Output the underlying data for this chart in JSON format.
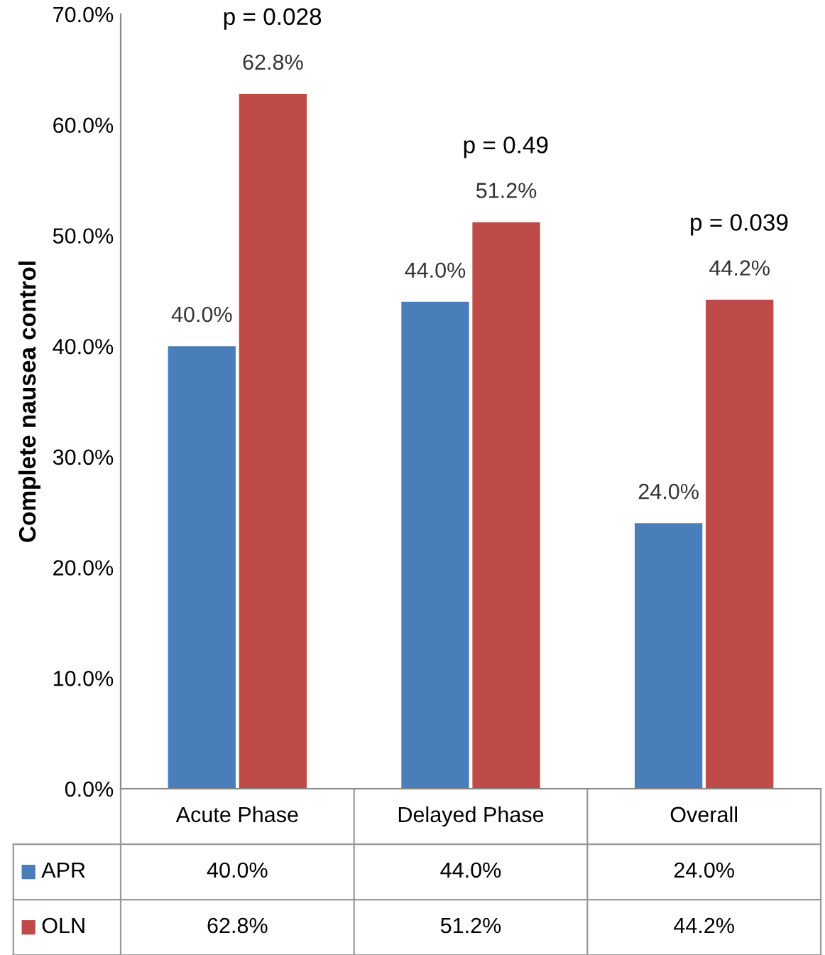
{
  "chart_data": {
    "type": "bar",
    "ylabel": "Complete nausea control",
    "categories": [
      "Acute Phase",
      "Delayed Phase",
      "Overall"
    ],
    "series": [
      {
        "name": "APR",
        "color": "#4a7ebb",
        "values": [
          40.0,
          44.0,
          24.0
        ],
        "value_labels": [
          "40.0%",
          "44.0%",
          "24.0%"
        ]
      },
      {
        "name": "OLN",
        "color": "#be4b48",
        "values": [
          62.8,
          51.2,
          44.2
        ],
        "value_labels": [
          "62.8%",
          "51.2%",
          "44.2%"
        ]
      }
    ],
    "ylim": [
      0,
      70
    ],
    "yticks": [
      {
        "value": 0,
        "label": "0.0%"
      },
      {
        "value": 10,
        "label": "10.0%"
      },
      {
        "value": 20,
        "label": "20.0%"
      },
      {
        "value": 30,
        "label": "30.0%"
      },
      {
        "value": 40,
        "label": "40.0%"
      },
      {
        "value": 50,
        "label": "50.0%"
      },
      {
        "value": 60,
        "label": "60.0%"
      },
      {
        "value": 70,
        "label": "70.0%"
      }
    ],
    "annotations": [
      "p = 0.028",
      "p = 0.49",
      "p = 0.039"
    ],
    "grid": false,
    "legend": "bottom left"
  }
}
